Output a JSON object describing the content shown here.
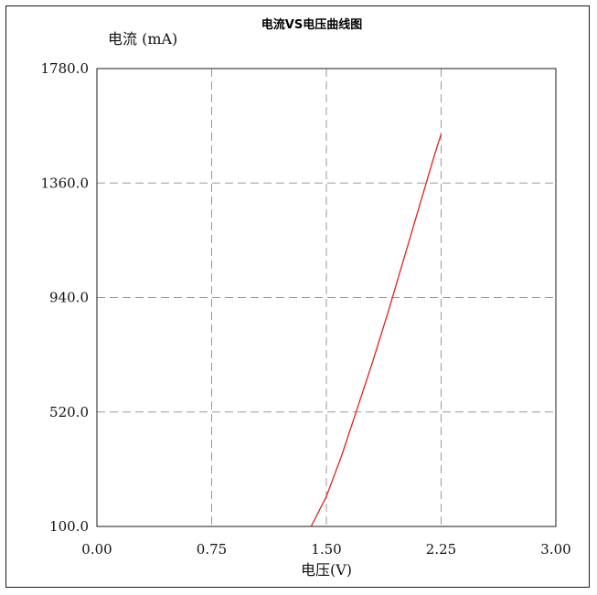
{
  "chart_data": {
    "type": "line",
    "title": "电流VS电压曲线图",
    "xlabel": "电压(V)",
    "ylabel": "电流 (mA)",
    "xlim": [
      0.0,
      3.0
    ],
    "ylim": [
      100.0,
      1780.0
    ],
    "x_ticks": [
      "0.00",
      "0.75",
      "1.50",
      "2.25",
      "3.00"
    ],
    "y_ticks": [
      "100.0",
      "520.0",
      "940.0",
      "1360.0",
      "1780.0"
    ],
    "x_tick_values": [
      0.0,
      0.75,
      1.5,
      2.25,
      3.0
    ],
    "y_tick_values": [
      100.0,
      520.0,
      940.0,
      1360.0,
      1780.0
    ],
    "grid": true,
    "series": [
      {
        "color": "#e02020",
        "x": [
          1.4,
          1.5,
          1.6,
          1.7,
          1.8,
          1.9,
          2.0,
          2.1,
          2.2,
          2.25
        ],
        "y": [
          100,
          210,
          360,
          530,
          700,
          880,
          1070,
          1260,
          1450,
          1540
        ]
      }
    ]
  }
}
